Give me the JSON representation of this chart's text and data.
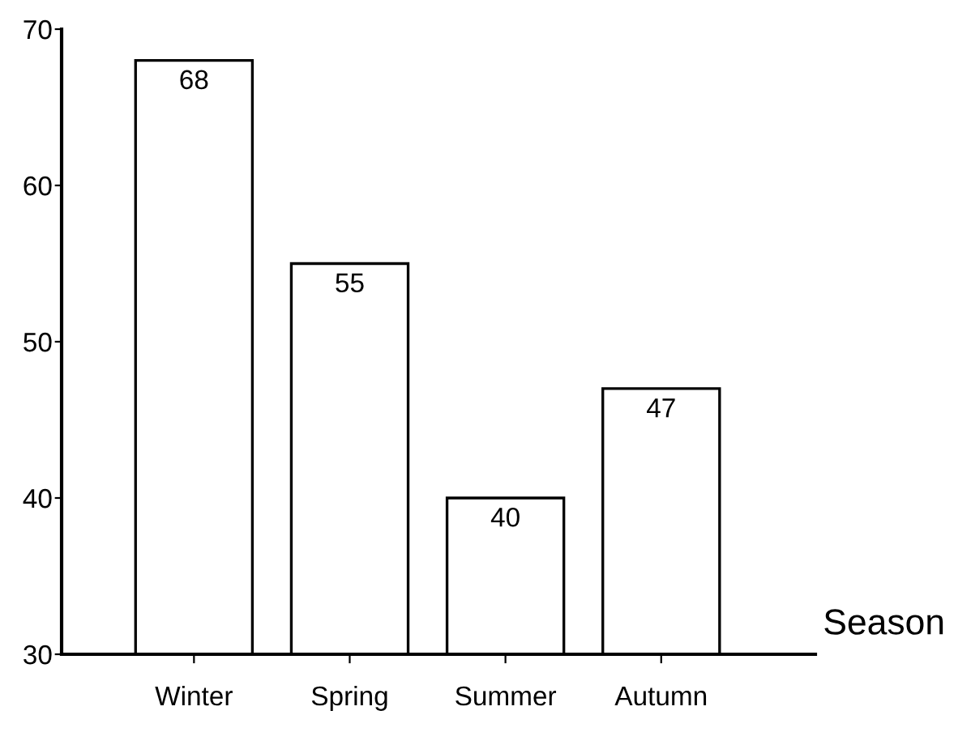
{
  "chart_data": {
    "type": "bar",
    "xlabel": "Season",
    "categories": [
      "Winter",
      "Spring",
      "Summer",
      "Autumn"
    ],
    "values": [
      68,
      55,
      40,
      47
    ],
    "color": "#ffffff",
    "ylim": [
      30,
      70
    ],
    "yticks": [
      30,
      40,
      50,
      60,
      70
    ],
    "data_labels": true,
    "grid": false,
    "legend": false
  }
}
